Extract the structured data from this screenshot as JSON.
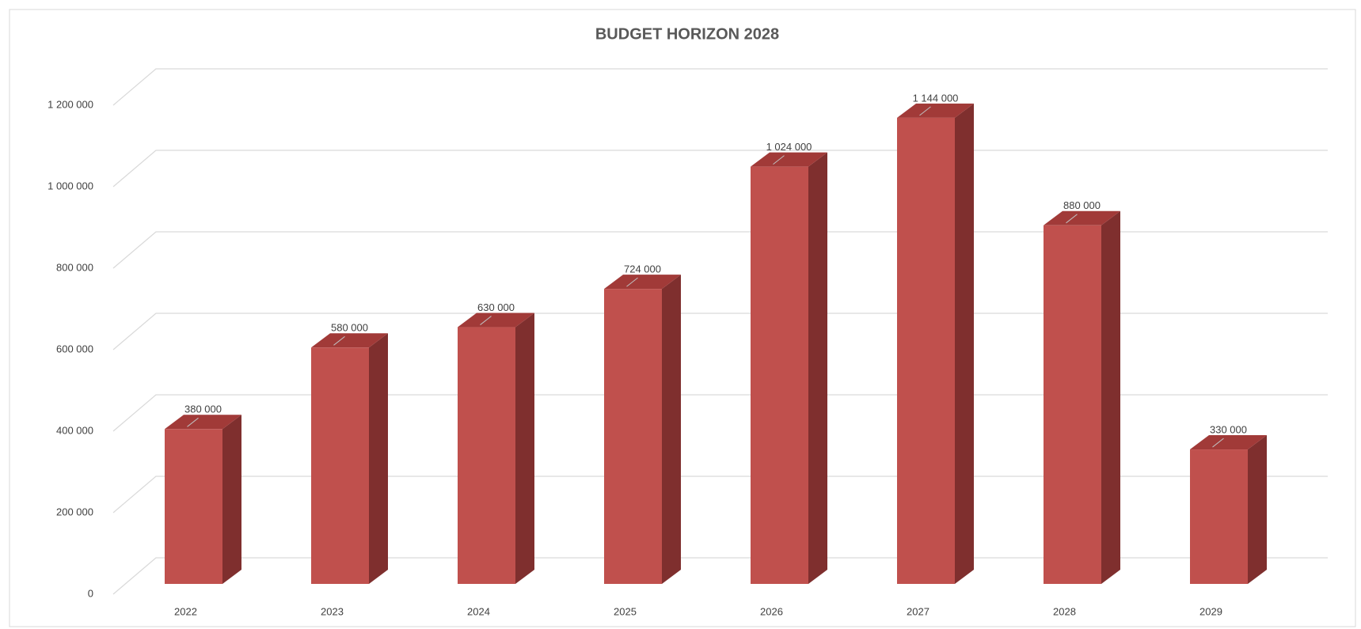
{
  "chart_data": {
    "type": "bar3d",
    "title": "BUDGET HORIZON 2028",
    "categories": [
      "2022",
      "2023",
      "2024",
      "2025",
      "2026",
      "2027",
      "2028",
      "2029"
    ],
    "values": [
      380000,
      580000,
      630000,
      724000,
      1024000,
      1144000,
      880000,
      330000
    ],
    "value_labels": [
      "380 000",
      "580 000",
      "630 000",
      "724 000",
      "1 024 000",
      "1 144 000",
      "880 000",
      "330 000"
    ],
    "color": "#c0504d",
    "ylim": [
      0,
      1200000
    ],
    "yticks": [
      0,
      {
        "value": 200000,
        "label": "200 000"
      },
      {
        "value": 400000,
        "label": "400 000"
      },
      {
        "value": 600000,
        "label": "600 000"
      },
      {
        "value": 800000,
        "label": "800 000"
      },
      {
        "value": 1000000,
        "label": "1 000 000"
      },
      {
        "value": 1200000,
        "label": "1 200 000"
      }
    ],
    "grid": true
  }
}
